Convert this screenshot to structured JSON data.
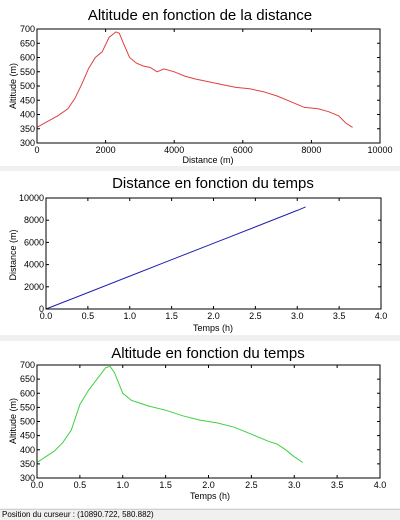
{
  "chart_data": [
    {
      "type": "line",
      "title": "Altitude en fonction de la distance",
      "xlabel": "Distance (m)",
      "ylabel": "Altitude (m)",
      "xlim": [
        0,
        10000
      ],
      "ylim": [
        300,
        700
      ],
      "xticks": [
        0,
        2000,
        4000,
        6000,
        8000,
        10000
      ],
      "xtick_labels": [
        "0",
        "2000",
        "4000",
        "6000",
        "8000",
        "10000"
      ],
      "yticks": [
        300,
        350,
        400,
        450,
        500,
        550,
        600,
        650,
        700
      ],
      "ytick_labels": [
        "300",
        "350",
        "400",
        "450",
        "500",
        "550",
        "600",
        "650",
        "700"
      ],
      "color": "#e04040",
      "series": [
        {
          "x": [
            0,
            300,
            600,
            900,
            1100,
            1300,
            1500,
            1700,
            1900,
            2100,
            2300,
            2400,
            2500,
            2700,
            2900,
            3100,
            3300,
            3500,
            3700,
            4000,
            4300,
            4600,
            5000,
            5400,
            5800,
            6200,
            6600,
            7000,
            7400,
            7800,
            8200,
            8500,
            8800,
            9000,
            9200
          ],
          "y": [
            355,
            375,
            395,
            420,
            455,
            505,
            560,
            600,
            620,
            670,
            690,
            685,
            655,
            600,
            580,
            570,
            565,
            550,
            560,
            550,
            535,
            525,
            515,
            505,
            495,
            490,
            480,
            465,
            445,
            425,
            420,
            410,
            395,
            370,
            355
          ]
        }
      ]
    },
    {
      "type": "line",
      "title": "Distance en fonction du temps",
      "xlabel": "Temps (h)",
      "ylabel": "Distance (m)",
      "xlim": [
        0,
        4.0
      ],
      "ylim": [
        0,
        10000
      ],
      "xticks": [
        0,
        0.5,
        1.0,
        1.5,
        2.0,
        2.5,
        3.0,
        3.5,
        4.0
      ],
      "xtick_labels": [
        "0.0",
        "0.5",
        "1.0",
        "1.5",
        "2.0",
        "2.5",
        "3.0",
        "3.5",
        "4.0"
      ],
      "yticks": [
        0,
        2000,
        4000,
        6000,
        8000,
        10000
      ],
      "ytick_labels": [
        "0",
        "2000",
        "4000",
        "6000",
        "8000",
        "10000"
      ],
      "color": "#2020b0",
      "series": [
        {
          "x": [
            0,
            0.5,
            1.0,
            1.5,
            2.0,
            2.5,
            3.0,
            3.1
          ],
          "y": [
            0,
            1480,
            2960,
            4440,
            5920,
            7400,
            8880,
            9200
          ]
        }
      ]
    },
    {
      "type": "line",
      "title": "Altitude en fonction du temps",
      "xlabel": "Temps (h)",
      "ylabel": "Altitude (m)",
      "xlim": [
        0,
        4.0
      ],
      "ylim": [
        300,
        700
      ],
      "xticks": [
        0,
        0.5,
        1.0,
        1.5,
        2.0,
        2.5,
        3.0,
        3.5,
        4.0
      ],
      "xtick_labels": [
        "0.0",
        "0.5",
        "1.0",
        "1.5",
        "2.0",
        "2.5",
        "3.0",
        "3.5",
        "4.0"
      ],
      "yticks": [
        300,
        350,
        400,
        450,
        500,
        550,
        600,
        650,
        700
      ],
      "ytick_labels": [
        "300",
        "350",
        "400",
        "450",
        "500",
        "550",
        "600",
        "650",
        "700"
      ],
      "color": "#40d040",
      "series": [
        {
          "x": [
            0,
            0.1,
            0.2,
            0.3,
            0.4,
            0.5,
            0.6,
            0.7,
            0.8,
            0.85,
            0.9,
            1.0,
            1.1,
            1.2,
            1.3,
            1.5,
            1.7,
            1.9,
            2.1,
            2.3,
            2.5,
            2.7,
            2.8,
            2.9,
            3.0,
            3.1
          ],
          "y": [
            355,
            375,
            395,
            425,
            470,
            560,
            610,
            650,
            690,
            695,
            675,
            600,
            575,
            565,
            555,
            540,
            520,
            505,
            495,
            480,
            455,
            430,
            420,
            400,
            375,
            355
          ]
        }
      ]
    }
  ],
  "status_bar": {
    "text": "Position du curseur : (10890.722, 580.882)"
  }
}
